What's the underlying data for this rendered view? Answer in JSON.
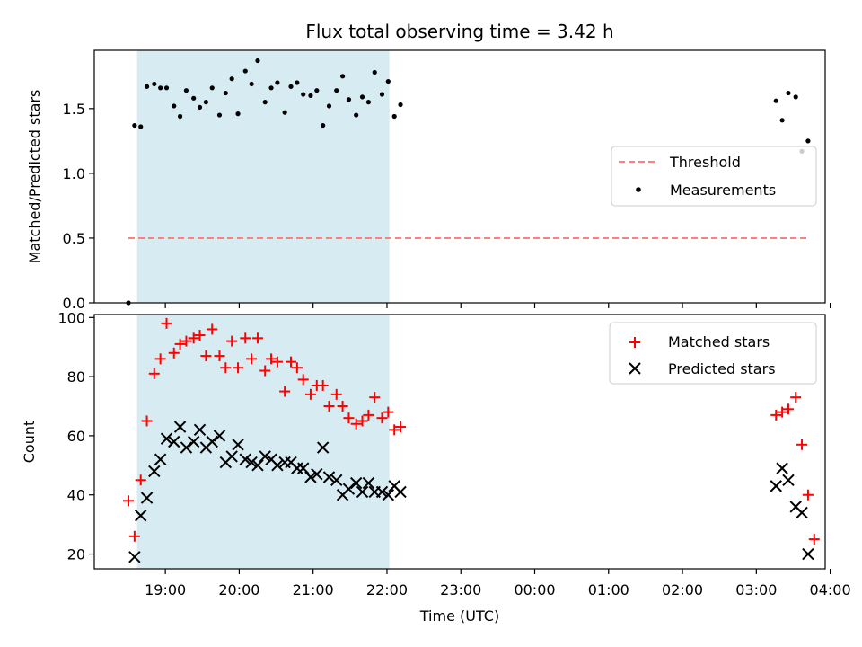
{
  "figure": {
    "title": "Flux total observing time = 3.42 h",
    "xlabel": "Time (UTC)",
    "x_ticks": [
      "19:00",
      "20:00",
      "21:00",
      "22:00",
      "23:00",
      "00:00",
      "01:00",
      "02:00",
      "03:00",
      "04:00"
    ],
    "shaded_span": {
      "start": "18:37",
      "end": "22:02",
      "color": "#add8e6"
    }
  },
  "chart_data": [
    {
      "type": "scatter",
      "ylabel": "Matched/Predicted stars",
      "ylim": [
        0,
        1.95
      ],
      "y_ticks": [
        0.0,
        0.5,
        1.0,
        1.5
      ],
      "y_tick_labels": [
        "0.0",
        "0.5",
        "1.0",
        "1.5"
      ],
      "legend_position": "center-right",
      "threshold": {
        "name": "Threshold",
        "value": 0.5,
        "x_range": [
          "18:30",
          "03:42"
        ],
        "color": "#ff7f7f",
        "style": "dashed"
      },
      "series": [
        {
          "name": "Measurements",
          "color": "#000000",
          "marker": "dot",
          "points": [
            [
              "18:30",
              0.0
            ],
            [
              "18:35",
              1.37
            ],
            [
              "18:40",
              1.36
            ],
            [
              "18:45",
              1.67
            ],
            [
              "18:51",
              1.69
            ],
            [
              "18:56",
              1.66
            ],
            [
              "19:01",
              1.66
            ],
            [
              "19:07",
              1.52
            ],
            [
              "19:12",
              1.44
            ],
            [
              "19:17",
              1.64
            ],
            [
              "19:23",
              1.58
            ],
            [
              "19:28",
              1.51
            ],
            [
              "19:33",
              1.55
            ],
            [
              "19:38",
              1.66
            ],
            [
              "19:44",
              1.45
            ],
            [
              "19:49",
              1.62
            ],
            [
              "19:54",
              1.73
            ],
            [
              "19:59",
              1.46
            ],
            [
              "20:05",
              1.79
            ],
            [
              "20:10",
              1.69
            ],
            [
              "20:15",
              1.87
            ],
            [
              "20:21",
              1.55
            ],
            [
              "20:26",
              1.66
            ],
            [
              "20:31",
              1.7
            ],
            [
              "20:37",
              1.47
            ],
            [
              "20:42",
              1.67
            ],
            [
              "20:47",
              1.7
            ],
            [
              "20:52",
              1.61
            ],
            [
              "20:58",
              1.6
            ],
            [
              "21:03",
              1.64
            ],
            [
              "21:08",
              1.37
            ],
            [
              "21:13",
              1.52
            ],
            [
              "21:19",
              1.64
            ],
            [
              "21:24",
              1.75
            ],
            [
              "21:29",
              1.57
            ],
            [
              "21:35",
              1.45
            ],
            [
              "21:40",
              1.59
            ],
            [
              "21:45",
              1.55
            ],
            [
              "21:50",
              1.78
            ],
            [
              "21:56",
              1.61
            ],
            [
              "22:01",
              1.71
            ],
            [
              "22:06",
              1.44
            ],
            [
              "22:11",
              1.53
            ],
            [
              "03:16",
              1.56
            ],
            [
              "03:21",
              1.41
            ],
            [
              "03:26",
              1.62
            ],
            [
              "03:32",
              1.59
            ],
            [
              "03:37",
              1.17
            ],
            [
              "03:42",
              1.25
            ]
          ]
        }
      ]
    },
    {
      "type": "scatter",
      "ylabel": "Count",
      "ylim": [
        15,
        101
      ],
      "y_ticks": [
        20,
        40,
        60,
        80,
        100
      ],
      "y_tick_labels": [
        "20",
        "40",
        "60",
        "80",
        "100"
      ],
      "legend_position": "top-right",
      "series": [
        {
          "name": "Matched stars",
          "color": "#ff0000",
          "marker": "plus",
          "points": [
            [
              "18:30",
              38
            ],
            [
              "18:35",
              26
            ],
            [
              "18:40",
              45
            ],
            [
              "18:45",
              65
            ],
            [
              "18:51",
              81
            ],
            [
              "18:56",
              86
            ],
            [
              "19:01",
              98
            ],
            [
              "19:07",
              88
            ],
            [
              "19:12",
              91
            ],
            [
              "19:17",
              92
            ],
            [
              "19:23",
              93
            ],
            [
              "19:28",
              94
            ],
            [
              "19:33",
              87
            ],
            [
              "19:38",
              96
            ],
            [
              "19:44",
              87
            ],
            [
              "19:49",
              83
            ],
            [
              "19:54",
              92
            ],
            [
              "19:59",
              83
            ],
            [
              "20:05",
              93
            ],
            [
              "20:10",
              86
            ],
            [
              "20:15",
              93
            ],
            [
              "20:21",
              82
            ],
            [
              "20:26",
              86
            ],
            [
              "20:31",
              85
            ],
            [
              "20:37",
              75
            ],
            [
              "20:42",
              85
            ],
            [
              "20:47",
              83
            ],
            [
              "20:52",
              79
            ],
            [
              "20:58",
              74
            ],
            [
              "21:03",
              77
            ],
            [
              "21:08",
              77
            ],
            [
              "21:13",
              70
            ],
            [
              "21:19",
              74
            ],
            [
              "21:24",
              70
            ],
            [
              "21:29",
              66
            ],
            [
              "21:35",
              64
            ],
            [
              "21:40",
              65
            ],
            [
              "21:45",
              67
            ],
            [
              "21:50",
              73
            ],
            [
              "21:56",
              66
            ],
            [
              "22:01",
              68
            ],
            [
              "22:06",
              62
            ],
            [
              "22:11",
              63
            ],
            [
              "03:16",
              67
            ],
            [
              "03:21",
              68
            ],
            [
              "03:26",
              69
            ],
            [
              "03:32",
              73
            ],
            [
              "03:37",
              57
            ],
            [
              "03:42",
              40
            ],
            [
              "03:47",
              25
            ]
          ]
        },
        {
          "name": "Predicted stars",
          "color": "#000000",
          "marker": "x",
          "points": [
            [
              "18:35",
              19
            ],
            [
              "18:40",
              33
            ],
            [
              "18:45",
              39
            ],
            [
              "18:51",
              48
            ],
            [
              "18:56",
              52
            ],
            [
              "19:01",
              59
            ],
            [
              "19:07",
              58
            ],
            [
              "19:12",
              63
            ],
            [
              "19:17",
              56
            ],
            [
              "19:23",
              58
            ],
            [
              "19:28",
              62
            ],
            [
              "19:33",
              56
            ],
            [
              "19:38",
              58
            ],
            [
              "19:44",
              60
            ],
            [
              "19:49",
              51
            ],
            [
              "19:54",
              53
            ],
            [
              "19:59",
              57
            ],
            [
              "20:05",
              52
            ],
            [
              "20:10",
              51
            ],
            [
              "20:15",
              50
            ],
            [
              "20:21",
              53
            ],
            [
              "20:26",
              52
            ],
            [
              "20:31",
              50
            ],
            [
              "20:37",
              51
            ],
            [
              "20:42",
              51
            ],
            [
              "20:47",
              49
            ],
            [
              "20:52",
              49
            ],
            [
              "20:58",
              46
            ],
            [
              "21:03",
              47
            ],
            [
              "21:08",
              56
            ],
            [
              "21:13",
              46
            ],
            [
              "21:19",
              45
            ],
            [
              "21:24",
              40
            ],
            [
              "21:29",
              42
            ],
            [
              "21:35",
              44
            ],
            [
              "21:40",
              41
            ],
            [
              "21:45",
              44
            ],
            [
              "21:50",
              41
            ],
            [
              "21:56",
              41
            ],
            [
              "22:01",
              40
            ],
            [
              "22:06",
              43
            ],
            [
              "22:11",
              41
            ],
            [
              "03:16",
              43
            ],
            [
              "03:21",
              49
            ],
            [
              "03:26",
              45
            ],
            [
              "03:32",
              36
            ],
            [
              "03:37",
              34
            ],
            [
              "03:42",
              20
            ]
          ]
        }
      ]
    }
  ]
}
